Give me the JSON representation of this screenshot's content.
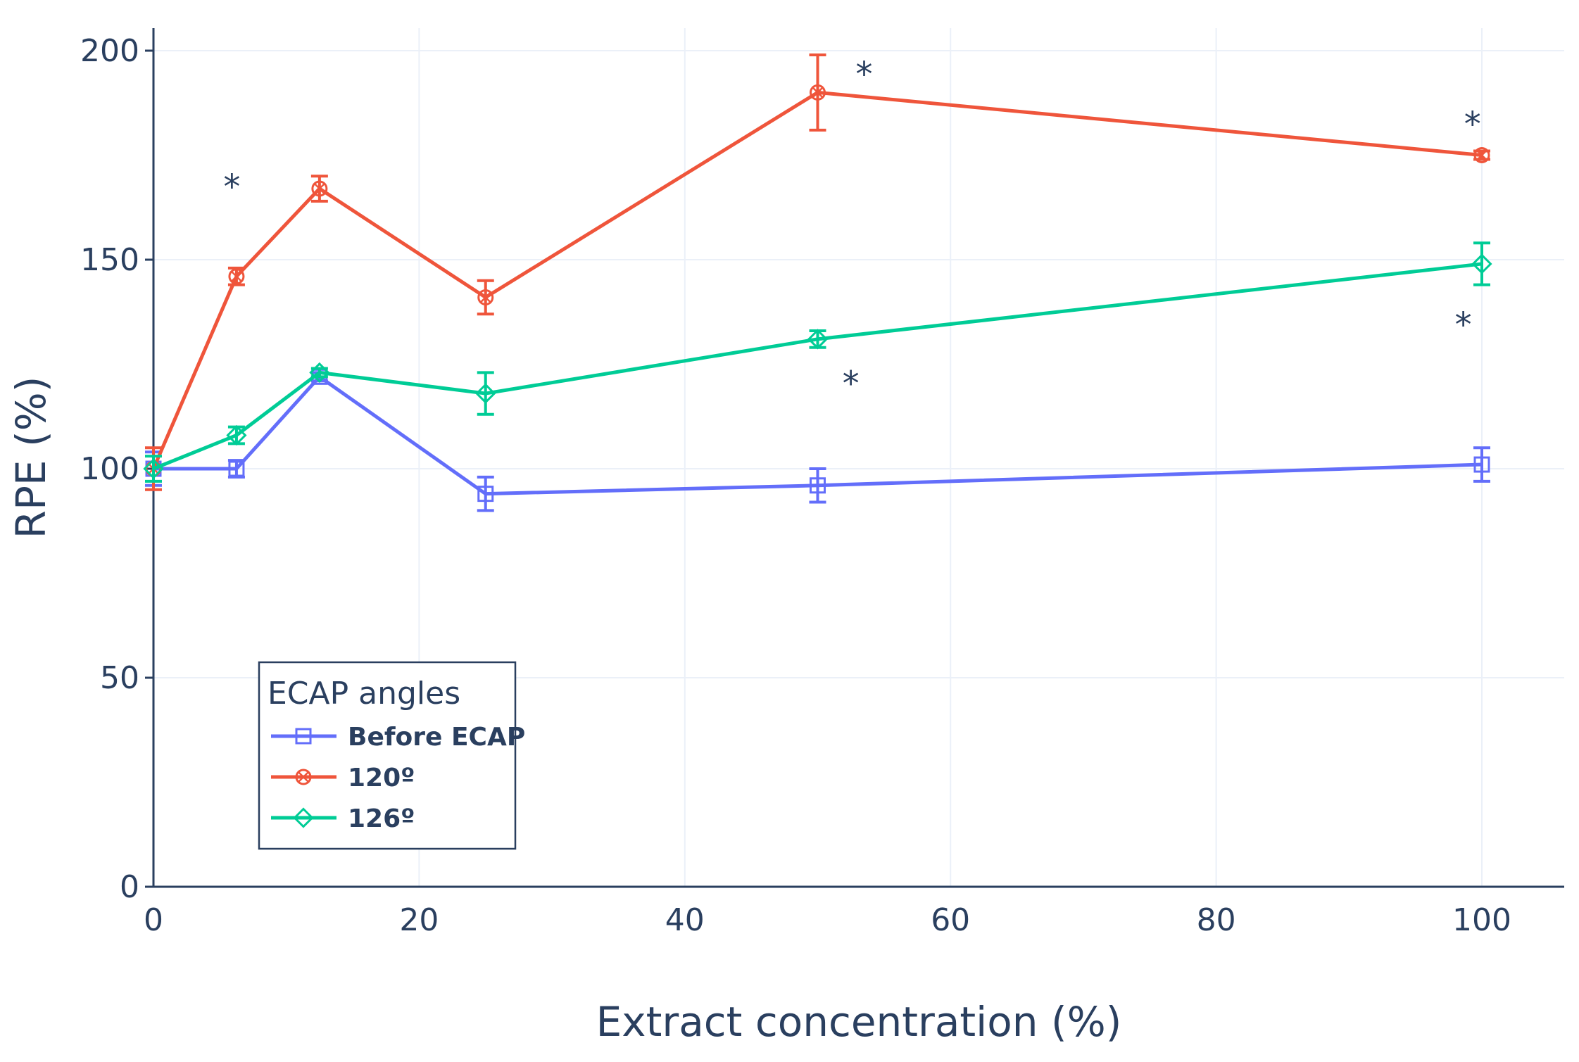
{
  "chart_data": {
    "type": "line",
    "title": "",
    "xlabel": "Extract concentration (%)",
    "ylabel": "RPE (%)",
    "xlim": [
      0,
      106
    ],
    "ylim": [
      0,
      200
    ],
    "x_ticks": [
      0,
      20,
      40,
      60,
      80,
      100
    ],
    "y_ticks": [
      0,
      50,
      100,
      150,
      200
    ],
    "grid": true,
    "legend": {
      "title": "ECAP angles",
      "placement": "bottom-left"
    },
    "series": [
      {
        "name": "Before ECAP",
        "color": "#636efa",
        "marker": "square-open",
        "x": [
          0,
          6.25,
          12.5,
          25,
          50,
          100
        ],
        "values": [
          100,
          100,
          122,
          94,
          96,
          101
        ],
        "errors": [
          4,
          2,
          1,
          4,
          4,
          4
        ]
      },
      {
        "name": "120º",
        "color": "#ef553b",
        "marker": "circle-x-open",
        "x": [
          0,
          6.25,
          12.5,
          25,
          50,
          100
        ],
        "values": [
          100,
          146,
          167,
          141,
          190,
          175
        ],
        "errors": [
          5,
          2,
          3,
          4,
          9,
          1
        ]
      },
      {
        "name": "126º",
        "color": "#00cc96",
        "marker": "diamond-open",
        "x": [
          0,
          6.25,
          12.5,
          25,
          50,
          100
        ],
        "values": [
          100,
          108,
          123,
          118,
          131,
          149
        ],
        "errors": [
          3,
          2,
          1,
          5,
          2,
          5
        ]
      }
    ],
    "annotations": [
      {
        "text": "*",
        "x": 5.9,
        "y": 169
      },
      {
        "text": "*",
        "x": 53.5,
        "y": 196
      },
      {
        "text": "*",
        "x": 99.3,
        "y": 184
      },
      {
        "text": "*",
        "x": 52.5,
        "y": 122
      },
      {
        "text": "*",
        "x": 98.6,
        "y": 136
      }
    ]
  }
}
